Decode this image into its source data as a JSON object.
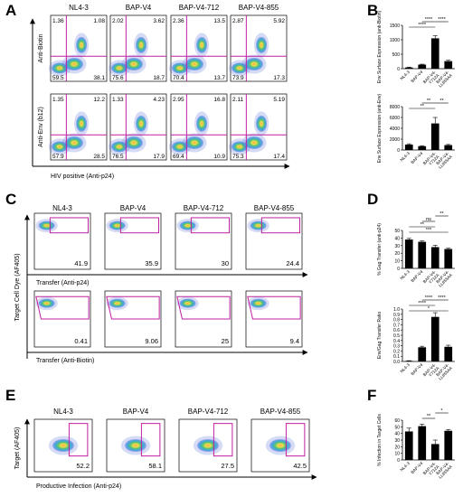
{
  "panels": {
    "A": {
      "letter": "A",
      "columns": [
        "NL4-3",
        "BAP-V4",
        "BAP-V4-712",
        "BAP-V4-855"
      ],
      "x_label": "HIV positive (Anti-p24)",
      "rows": [
        {
          "y_label": "Anti-Biotin",
          "plots": [
            {
              "q": [
                "1.36",
                "1.08",
                "59.5",
                "38.1"
              ]
            },
            {
              "q": [
                "2.02",
                "3.62",
                "75.6",
                "18.7"
              ]
            },
            {
              "q": [
                "2.36",
                "13.5",
                "70.4",
                "13.7"
              ]
            },
            {
              "q": [
                "2.87",
                "5.92",
                "73.9",
                "17.3"
              ]
            }
          ]
        },
        {
          "y_label": "Anti-Env (b12)",
          "plots": [
            {
              "q": [
                "1.35",
                "12.2",
                "57.9",
                "28.5"
              ]
            },
            {
              "q": [
                "1.33",
                "4.23",
                "76.5",
                "17.9"
              ]
            },
            {
              "q": [
                "2.95",
                "16.8",
                "69.4",
                "10.9"
              ]
            },
            {
              "q": [
                "2.11",
                "5.19",
                "75.3",
                "17.4"
              ]
            }
          ]
        }
      ]
    },
    "C": {
      "letter": "C",
      "columns": [
        "NL4-3",
        "BAP-V4",
        "BAP-V4-712",
        "BAP-V4-855"
      ],
      "y_label": "Target Cell Dye (AF405)",
      "rows": [
        {
          "x_label": "Transfer (Anti-p24)",
          "values": [
            "41.9",
            "35.9",
            "30",
            "24.4"
          ]
        },
        {
          "x_label": "Transfer (Anti-Biotin)",
          "values": [
            "0.41",
            "9.06",
            "25",
            "9.4"
          ]
        }
      ]
    },
    "E": {
      "letter": "E",
      "columns": [
        "NL4-3",
        "BAP-V4",
        "BAP-V4-712",
        "BAP-V4-855"
      ],
      "y_label": "Target (AF405)",
      "x_label": "Productive Infection (Anti-p24)",
      "values": [
        "52.2",
        "58.1",
        "27.5",
        "42.5"
      ]
    },
    "B": {
      "letter": "B"
    },
    "D": {
      "letter": "D"
    },
    "F": {
      "letter": "F"
    }
  },
  "chart_data": [
    {
      "id": "B-top",
      "type": "bar",
      "categories": [
        "NL4-3",
        "BAP-V4",
        "BAP-V4-Y712A",
        "BAP-V4-LL855AA"
      ],
      "values": [
        40,
        140,
        1050,
        260
      ],
      "errors": [
        15,
        15,
        90,
        30
      ],
      "ylabel": "Env Surface Expression (anti-Biotin)",
      "ylim": [
        0,
        1500
      ],
      "yticks": [
        "0",
        "500",
        "1000",
        "1500"
      ],
      "bar_color": "#000000",
      "sig": [
        {
          "from": 0,
          "to": 2,
          "label": "****",
          "level": 1
        },
        {
          "from": 1,
          "to": 2,
          "label": "****",
          "level": 2
        },
        {
          "from": 2,
          "to": 3,
          "label": "****",
          "level": 2
        }
      ]
    },
    {
      "id": "B-bottom",
      "type": "bar",
      "categories": [
        "NL4-3",
        "BAP-V4",
        "BAP-V4-Y712A",
        "BAP-V4-LL855AA"
      ],
      "values": [
        1000,
        700,
        4900,
        900
      ],
      "errors": [
        150,
        100,
        1100,
        120
      ],
      "ylabel": "Env Surface Expression (anti-Env)",
      "ylim": [
        0,
        8000
      ],
      "yticks": [
        "0",
        "2000",
        "4000",
        "6000",
        "8000"
      ],
      "bar_color": "#000000",
      "sig": [
        {
          "from": 0,
          "to": 2,
          "label": "**",
          "level": 1
        },
        {
          "from": 1,
          "to": 2,
          "label": "**",
          "level": 2
        },
        {
          "from": 2,
          "to": 3,
          "label": "**",
          "level": 2
        }
      ]
    },
    {
      "id": "D-top",
      "type": "bar",
      "categories": [
        "NL4-3",
        "BAP-V4",
        "BAP-V4-Y712A",
        "BAP-V4-LL855AA"
      ],
      "values": [
        38,
        35,
        28,
        25.5
      ],
      "errors": [
        1.5,
        1.2,
        2.5,
        1.0
      ],
      "ylabel": "% Gag Transfer (anti-p24)",
      "ylim": [
        0,
        50
      ],
      "yticks": [
        "0",
        "10",
        "20",
        "30",
        "40",
        "50"
      ],
      "bar_color": "#000000",
      "sig": [
        {
          "from": 0,
          "to": 3,
          "label": "***",
          "level": 1
        },
        {
          "from": 0,
          "to": 2,
          "label": "**",
          "level": 2
        },
        {
          "from": 1,
          "to": 2,
          "label": "ns",
          "level": 3
        },
        {
          "from": 2,
          "to": 3,
          "label": "**",
          "level": 4
        }
      ]
    },
    {
      "id": "D-bottom",
      "type": "bar",
      "categories": [
        "NL4-3",
        "BAP-V4",
        "BAP-V4-Y712A",
        "BAP-V4-LL855AA"
      ],
      "values": [
        0.01,
        0.27,
        0.85,
        0.28
      ],
      "errors": [
        0.005,
        0.02,
        0.08,
        0.03
      ],
      "ylabel": "Env/Gag Transfer Ratio",
      "ylim": [
        0,
        1.0
      ],
      "yticks": [
        "0.0",
        "0.1",
        "0.2",
        "0.3",
        "0.4",
        "0.5",
        "0.6",
        "0.7",
        "0.8",
        "0.9",
        "1.0"
      ],
      "bar_color": "#000000",
      "sig": [
        {
          "from": 0,
          "to": 3,
          "label": "*",
          "level": 1
        },
        {
          "from": 0,
          "to": 2,
          "label": "****",
          "level": 2
        },
        {
          "from": 1,
          "to": 2,
          "label": "****",
          "level": 3
        },
        {
          "from": 2,
          "to": 3,
          "label": "****",
          "level": 3
        }
      ]
    },
    {
      "id": "F",
      "type": "bar",
      "categories": [
        "NL4-3",
        "BAP-V4",
        "BAP-V4-Y712A",
        "BAP-V4-LL855AA"
      ],
      "values": [
        43,
        51,
        24,
        44
      ],
      "errors": [
        5,
        3,
        6,
        2
      ],
      "ylabel": "% Infection in Target Cells",
      "ylim": [
        0,
        60
      ],
      "yticks": [
        "0",
        "10",
        "20",
        "30",
        "40",
        "50",
        "60"
      ],
      "bar_color": "#000000",
      "sig": [
        {
          "from": 1,
          "to": 2,
          "label": "**",
          "level": 1
        },
        {
          "from": 2,
          "to": 3,
          "label": "*",
          "level": 2
        }
      ]
    }
  ]
}
